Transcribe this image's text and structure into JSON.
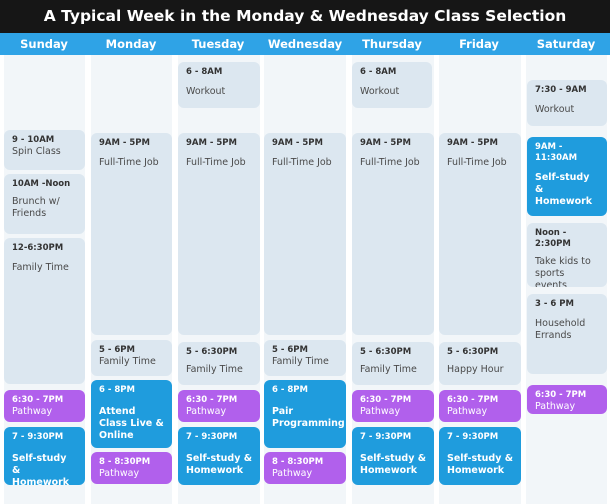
{
  "title": "A Typical Week in the Monday & Wednesday Class Selection",
  "days": [
    "Sunday",
    "Monday",
    "Tuesday",
    "Wednesday",
    "Thursday",
    "Friday",
    "Saturday"
  ],
  "events": {
    "sun": [
      {
        "time": "9 - 10AM",
        "desc": "Spin Class"
      },
      {
        "time": "10AM -Noon",
        "desc": "Brunch w/ Friends"
      },
      {
        "time": "12-6:30PM",
        "desc": "Family Time"
      },
      {
        "time": "6:30 - 7PM",
        "desc": "Pathway"
      },
      {
        "time": "7 - 9:30PM",
        "desc": "Self-study & Homework"
      }
    ],
    "mon": [
      {
        "time": "9AM - 5PM",
        "desc": "Full-Time Job"
      },
      {
        "time": "5 - 6PM",
        "desc": "Family Time"
      },
      {
        "time": "6 - 8PM",
        "desc": "Attend Class Live & Online"
      },
      {
        "time": "8 - 8:30PM",
        "desc": "Pathway"
      }
    ],
    "tue": [
      {
        "time": "6 - 8AM",
        "desc": "Workout"
      },
      {
        "time": "9AM - 5PM",
        "desc": "Full-Time Job"
      },
      {
        "time": "5 - 6:30PM",
        "desc": "Family Time"
      },
      {
        "time": "6:30 - 7PM",
        "desc": "Pathway"
      },
      {
        "time": "7 - 9:30PM",
        "desc": "Self-study & Homework"
      }
    ],
    "wed": [
      {
        "time": "9AM - 5PM",
        "desc": "Full-Time Job"
      },
      {
        "time": "5 - 6PM",
        "desc": "Family Time"
      },
      {
        "time": "6 - 8PM",
        "desc": "Pair Programming"
      },
      {
        "time": "8 - 8:30PM",
        "desc": "Pathway"
      }
    ],
    "thu": [
      {
        "time": "6 - 8AM",
        "desc": "Workout"
      },
      {
        "time": "9AM - 5PM",
        "desc": "Full-Time Job"
      },
      {
        "time": "5 - 6:30PM",
        "desc": "Family Time"
      },
      {
        "time": "6:30 - 7PM",
        "desc": "Pathway"
      },
      {
        "time": "7 - 9:30PM",
        "desc": "Self-study & Homework"
      }
    ],
    "fri": [
      {
        "time": "9AM - 5PM",
        "desc": "Full-Time Job"
      },
      {
        "time": "5 - 6:30PM",
        "desc": "Happy Hour"
      },
      {
        "time": "6:30 - 7PM",
        "desc": "Pathway"
      },
      {
        "time": "7 - 9:30PM",
        "desc": "Self-study & Homework"
      }
    ],
    "sat": [
      {
        "time": "7:30 - 9AM",
        "desc": "Workout"
      },
      {
        "time": "9AM - 11:30AM",
        "desc": "Self-study & Homework"
      },
      {
        "time": "Noon - 2:30PM",
        "desc": "Take kids to sports events"
      },
      {
        "time": "3 - 6 PM",
        "desc": "Household Errands"
      },
      {
        "time": "6:30 - 7PM",
        "desc": "Pathway"
      }
    ]
  },
  "colors": {
    "title_bg": "#161616",
    "header_bg": "#2fa3e6",
    "light_card": "#dce7f0",
    "blue_card": "#1f9cdd",
    "purple_card": "#b160ec"
  }
}
